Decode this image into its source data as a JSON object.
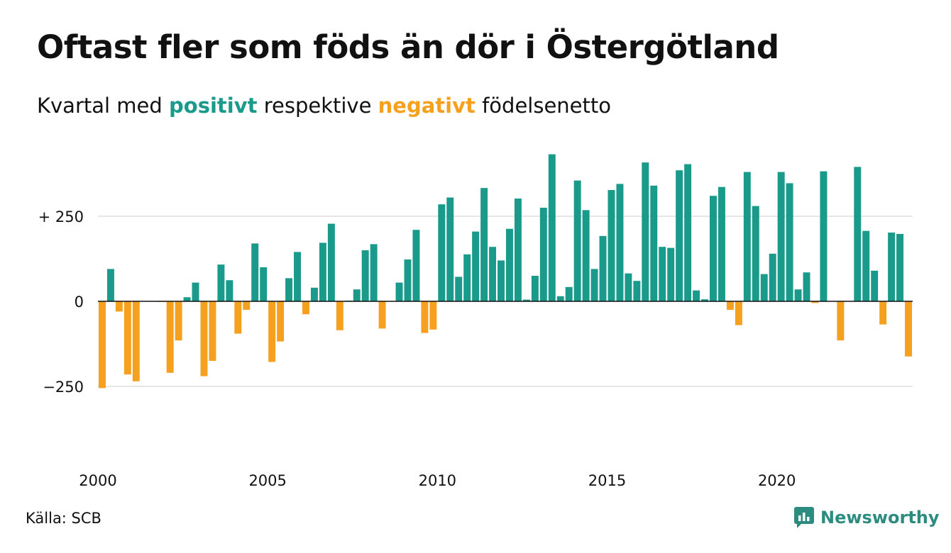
{
  "header": {
    "title": "Oftast fler som föds än dör i Östergötland",
    "subtitle_pre": "Kvartal med ",
    "subtitle_pos": "positivt",
    "subtitle_mid": " respektive ",
    "subtitle_neg": "negativt",
    "subtitle_post": " födelsenetto"
  },
  "footer": {
    "source": "Källa: SCB",
    "brand": "Newsworthy",
    "brand_icon": "bar-chart-speech-bubble-icon"
  },
  "colors": {
    "positive": "#1a9a8a",
    "negative": "#f5a11f",
    "grid": "#dddddd",
    "text": "#111111"
  },
  "chart_data": {
    "type": "bar",
    "x_start_year": 2000,
    "x_start_quarter": 1,
    "period": "quarter",
    "values": [
      -255,
      95,
      -30,
      -215,
      -235,
      0,
      -1,
      -2,
      -210,
      -115,
      12,
      55,
      -220,
      -175,
      108,
      62,
      -95,
      -25,
      170,
      100,
      -178,
      -118,
      68,
      145,
      -38,
      40,
      172,
      228,
      -85,
      2,
      35,
      150,
      168,
      -80,
      0,
      55,
      123,
      210,
      -93,
      -83,
      285,
      305,
      72,
      138,
      205,
      333,
      160,
      120,
      213,
      302,
      5,
      75,
      275,
      432,
      15,
      42,
      355,
      268,
      95,
      192,
      327,
      345,
      82,
      60,
      408,
      340,
      160,
      157,
      385,
      403,
      32,
      6,
      310,
      336,
      -25,
      -70,
      380,
      280,
      80,
      140,
      380,
      347,
      35,
      85,
      -5,
      382,
      0,
      -115,
      0,
      395,
      207,
      90,
      -68,
      202,
      198,
      -162
    ],
    "x_ticks": [
      "2000",
      "2005",
      "2010",
      "2015",
      "2020"
    ],
    "y_ticks": [
      {
        "value": 250,
        "label": "+ 250"
      },
      {
        "value": 0,
        "label": "0"
      },
      {
        "value": -250,
        "label": "−250"
      }
    ],
    "ylim": [
      -450,
      450
    ],
    "grid": true,
    "legend": "none"
  }
}
